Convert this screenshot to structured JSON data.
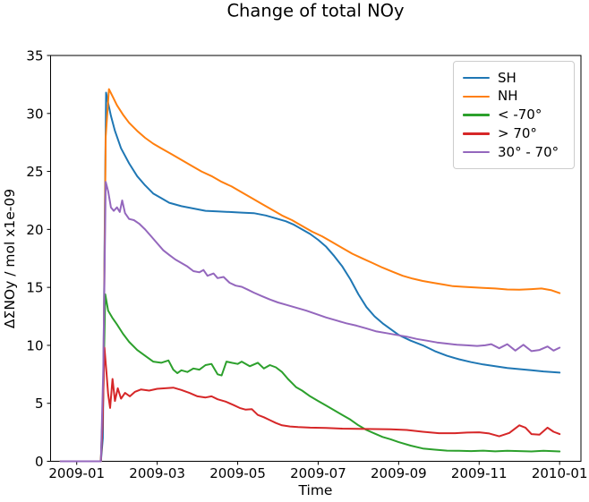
{
  "chart_data": {
    "type": "line",
    "title": "Change of total NOy",
    "xlabel": "Time",
    "ylabel": "ΔΣNOy / mol x1e-09",
    "x_unit": "months since 2009-01-01",
    "xlim": [
      -0.65,
      12.53
    ],
    "ylim": [
      0,
      35
    ],
    "grid": false,
    "legend_position": "upper right",
    "x_ticks": [
      {
        "v": 0,
        "label": "2009-01"
      },
      {
        "v": 2,
        "label": "2009-03"
      },
      {
        "v": 4,
        "label": "2009-05"
      },
      {
        "v": 6,
        "label": "2009-07"
      },
      {
        "v": 8,
        "label": "2009-09"
      },
      {
        "v": 10,
        "label": "2009-11"
      },
      {
        "v": 12,
        "label": "2010-01"
      }
    ],
    "y_ticks": [
      0,
      5,
      10,
      15,
      20,
      25,
      30,
      35
    ],
    "series": [
      {
        "id": "sh",
        "name": "SH",
        "color": "#1f77b4",
        "points": [
          [
            -0.4,
            0
          ],
          [
            0.6,
            0
          ],
          [
            0.65,
            2
          ],
          [
            0.7,
            22
          ],
          [
            0.73,
            31.8
          ],
          [
            0.78,
            30.9
          ],
          [
            0.85,
            29.8
          ],
          [
            0.95,
            28.5
          ],
          [
            1.1,
            27.0
          ],
          [
            1.3,
            25.7
          ],
          [
            1.5,
            24.6
          ],
          [
            1.7,
            23.8
          ],
          [
            1.9,
            23.1
          ],
          [
            2.1,
            22.7
          ],
          [
            2.3,
            22.3
          ],
          [
            2.6,
            22.0
          ],
          [
            2.9,
            21.8
          ],
          [
            3.2,
            21.6
          ],
          [
            3.5,
            21.55
          ],
          [
            3.8,
            21.5
          ],
          [
            4.1,
            21.45
          ],
          [
            4.4,
            21.4
          ],
          [
            4.7,
            21.2
          ],
          [
            5.0,
            20.9
          ],
          [
            5.2,
            20.7
          ],
          [
            5.4,
            20.4
          ],
          [
            5.6,
            20.0
          ],
          [
            5.8,
            19.6
          ],
          [
            6.0,
            19.1
          ],
          [
            6.2,
            18.5
          ],
          [
            6.4,
            17.7
          ],
          [
            6.6,
            16.8
          ],
          [
            6.8,
            15.7
          ],
          [
            7.0,
            14.4
          ],
          [
            7.2,
            13.3
          ],
          [
            7.4,
            12.5
          ],
          [
            7.6,
            11.9
          ],
          [
            7.8,
            11.4
          ],
          [
            8.0,
            10.9
          ],
          [
            8.3,
            10.4
          ],
          [
            8.6,
            10.0
          ],
          [
            8.9,
            9.5
          ],
          [
            9.2,
            9.1
          ],
          [
            9.5,
            8.8
          ],
          [
            9.8,
            8.55
          ],
          [
            10.1,
            8.35
          ],
          [
            10.4,
            8.2
          ],
          [
            10.7,
            8.05
          ],
          [
            11.0,
            7.95
          ],
          [
            11.3,
            7.85
          ],
          [
            11.6,
            7.75
          ],
          [
            12.0,
            7.65
          ]
        ]
      },
      {
        "id": "nh",
        "name": "NH",
        "color": "#ff7f0e",
        "points": [
          [
            -0.4,
            0
          ],
          [
            0.6,
            0
          ],
          [
            0.66,
            6
          ],
          [
            0.72,
            28
          ],
          [
            0.8,
            32.1
          ],
          [
            0.9,
            31.4
          ],
          [
            1.0,
            30.7
          ],
          [
            1.15,
            29.9
          ],
          [
            1.3,
            29.2
          ],
          [
            1.5,
            28.5
          ],
          [
            1.7,
            27.9
          ],
          [
            1.9,
            27.4
          ],
          [
            2.1,
            27.0
          ],
          [
            2.35,
            26.5
          ],
          [
            2.6,
            26.0
          ],
          [
            2.85,
            25.5
          ],
          [
            3.1,
            25.0
          ],
          [
            3.35,
            24.6
          ],
          [
            3.6,
            24.1
          ],
          [
            3.85,
            23.7
          ],
          [
            4.1,
            23.2
          ],
          [
            4.35,
            22.7
          ],
          [
            4.6,
            22.2
          ],
          [
            4.85,
            21.7
          ],
          [
            5.1,
            21.2
          ],
          [
            5.35,
            20.8
          ],
          [
            5.6,
            20.3
          ],
          [
            5.85,
            19.8
          ],
          [
            6.1,
            19.4
          ],
          [
            6.35,
            18.9
          ],
          [
            6.6,
            18.4
          ],
          [
            6.85,
            17.9
          ],
          [
            7.1,
            17.5
          ],
          [
            7.35,
            17.1
          ],
          [
            7.6,
            16.7
          ],
          [
            7.85,
            16.35
          ],
          [
            8.1,
            16.0
          ],
          [
            8.35,
            15.75
          ],
          [
            8.6,
            15.55
          ],
          [
            8.85,
            15.4
          ],
          [
            9.1,
            15.25
          ],
          [
            9.35,
            15.1
          ],
          [
            9.6,
            15.05
          ],
          [
            9.85,
            15.0
          ],
          [
            10.1,
            14.95
          ],
          [
            10.4,
            14.9
          ],
          [
            10.7,
            14.82
          ],
          [
            11.0,
            14.8
          ],
          [
            11.3,
            14.85
          ],
          [
            11.55,
            14.9
          ],
          [
            11.8,
            14.75
          ],
          [
            12.0,
            14.5
          ]
        ]
      },
      {
        "id": "lt-minus-70",
        "name": "< -70°",
        "color": "#2ca02c",
        "points": [
          [
            -0.4,
            0
          ],
          [
            0.6,
            0
          ],
          [
            0.66,
            6
          ],
          [
            0.71,
            14.4
          ],
          [
            0.78,
            13.0
          ],
          [
            0.88,
            12.4
          ],
          [
            1.0,
            11.8
          ],
          [
            1.15,
            11.0
          ],
          [
            1.3,
            10.3
          ],
          [
            1.5,
            9.6
          ],
          [
            1.7,
            9.1
          ],
          [
            1.9,
            8.6
          ],
          [
            2.1,
            8.5
          ],
          [
            2.28,
            8.7
          ],
          [
            2.4,
            7.9
          ],
          [
            2.5,
            7.6
          ],
          [
            2.6,
            7.85
          ],
          [
            2.75,
            7.7
          ],
          [
            2.9,
            8.0
          ],
          [
            3.05,
            7.9
          ],
          [
            3.2,
            8.3
          ],
          [
            3.35,
            8.4
          ],
          [
            3.5,
            7.5
          ],
          [
            3.6,
            7.4
          ],
          [
            3.72,
            8.6
          ],
          [
            3.85,
            8.5
          ],
          [
            4.0,
            8.4
          ],
          [
            4.1,
            8.6
          ],
          [
            4.3,
            8.2
          ],
          [
            4.5,
            8.5
          ],
          [
            4.65,
            8.0
          ],
          [
            4.8,
            8.3
          ],
          [
            4.95,
            8.1
          ],
          [
            5.1,
            7.7
          ],
          [
            5.25,
            7.1
          ],
          [
            5.45,
            6.4
          ],
          [
            5.6,
            6.1
          ],
          [
            5.8,
            5.6
          ],
          [
            6.0,
            5.2
          ],
          [
            6.2,
            4.8
          ],
          [
            6.4,
            4.4
          ],
          [
            6.6,
            4.0
          ],
          [
            6.8,
            3.6
          ],
          [
            7.0,
            3.1
          ],
          [
            7.2,
            2.7
          ],
          [
            7.4,
            2.4
          ],
          [
            7.6,
            2.1
          ],
          [
            7.8,
            1.9
          ],
          [
            8.0,
            1.65
          ],
          [
            8.3,
            1.35
          ],
          [
            8.6,
            1.1
          ],
          [
            8.9,
            1.0
          ],
          [
            9.2,
            0.92
          ],
          [
            9.5,
            0.9
          ],
          [
            9.8,
            0.88
          ],
          [
            10.1,
            0.92
          ],
          [
            10.4,
            0.86
          ],
          [
            10.7,
            0.9
          ],
          [
            11.0,
            0.88
          ],
          [
            11.3,
            0.85
          ],
          [
            11.6,
            0.9
          ],
          [
            12.0,
            0.85
          ]
        ]
      },
      {
        "id": "gt-70",
        "name": "> 70°",
        "color": "#d62728",
        "points": [
          [
            -0.4,
            0
          ],
          [
            0.6,
            0
          ],
          [
            0.64,
            3
          ],
          [
            0.69,
            9.8
          ],
          [
            0.74,
            7.6
          ],
          [
            0.78,
            5.8
          ],
          [
            0.83,
            4.6
          ],
          [
            0.89,
            7.1
          ],
          [
            0.95,
            5.2
          ],
          [
            1.02,
            6.3
          ],
          [
            1.1,
            5.4
          ],
          [
            1.2,
            5.9
          ],
          [
            1.32,
            5.6
          ],
          [
            1.45,
            6.0
          ],
          [
            1.6,
            6.2
          ],
          [
            1.8,
            6.1
          ],
          [
            2.0,
            6.25
          ],
          [
            2.2,
            6.3
          ],
          [
            2.4,
            6.35
          ],
          [
            2.6,
            6.15
          ],
          [
            2.8,
            5.9
          ],
          [
            3.0,
            5.6
          ],
          [
            3.2,
            5.5
          ],
          [
            3.35,
            5.6
          ],
          [
            3.5,
            5.35
          ],
          [
            3.7,
            5.15
          ],
          [
            3.9,
            4.85
          ],
          [
            4.05,
            4.6
          ],
          [
            4.2,
            4.45
          ],
          [
            4.35,
            4.5
          ],
          [
            4.5,
            4.0
          ],
          [
            4.65,
            3.8
          ],
          [
            4.8,
            3.55
          ],
          [
            4.95,
            3.3
          ],
          [
            5.1,
            3.1
          ],
          [
            5.3,
            3.0
          ],
          [
            5.5,
            2.95
          ],
          [
            5.8,
            2.9
          ],
          [
            6.2,
            2.88
          ],
          [
            6.6,
            2.82
          ],
          [
            7.0,
            2.8
          ],
          [
            7.4,
            2.78
          ],
          [
            7.8,
            2.76
          ],
          [
            8.2,
            2.7
          ],
          [
            8.6,
            2.55
          ],
          [
            9.0,
            2.42
          ],
          [
            9.4,
            2.42
          ],
          [
            9.7,
            2.48
          ],
          [
            10.0,
            2.5
          ],
          [
            10.25,
            2.4
          ],
          [
            10.5,
            2.15
          ],
          [
            10.75,
            2.45
          ],
          [
            11.0,
            3.1
          ],
          [
            11.15,
            2.9
          ],
          [
            11.3,
            2.35
          ],
          [
            11.5,
            2.3
          ],
          [
            11.7,
            2.9
          ],
          [
            11.85,
            2.55
          ],
          [
            12.0,
            2.35
          ]
        ]
      },
      {
        "id": "30-70",
        "name": "30° - 70°",
        "color": "#9467bd",
        "points": [
          [
            -0.4,
            0
          ],
          [
            0.6,
            0
          ],
          [
            0.66,
            8
          ],
          [
            0.72,
            24.1
          ],
          [
            0.78,
            23.3
          ],
          [
            0.85,
            21.9
          ],
          [
            0.92,
            21.6
          ],
          [
            1.0,
            21.9
          ],
          [
            1.07,
            21.5
          ],
          [
            1.13,
            22.5
          ],
          [
            1.2,
            21.4
          ],
          [
            1.3,
            20.9
          ],
          [
            1.42,
            20.8
          ],
          [
            1.55,
            20.5
          ],
          [
            1.7,
            20.0
          ],
          [
            1.85,
            19.4
          ],
          [
            2.0,
            18.8
          ],
          [
            2.15,
            18.2
          ],
          [
            2.3,
            17.8
          ],
          [
            2.45,
            17.4
          ],
          [
            2.6,
            17.1
          ],
          [
            2.75,
            16.8
          ],
          [
            2.9,
            16.4
          ],
          [
            3.05,
            16.3
          ],
          [
            3.15,
            16.5
          ],
          [
            3.25,
            16.0
          ],
          [
            3.4,
            16.2
          ],
          [
            3.5,
            15.8
          ],
          [
            3.65,
            15.9
          ],
          [
            3.8,
            15.4
          ],
          [
            3.95,
            15.15
          ],
          [
            4.1,
            15.05
          ],
          [
            4.25,
            14.8
          ],
          [
            4.4,
            14.55
          ],
          [
            4.6,
            14.25
          ],
          [
            4.8,
            13.95
          ],
          [
            5.0,
            13.7
          ],
          [
            5.2,
            13.5
          ],
          [
            5.45,
            13.25
          ],
          [
            5.7,
            13.0
          ],
          [
            5.95,
            12.7
          ],
          [
            6.2,
            12.4
          ],
          [
            6.45,
            12.15
          ],
          [
            6.7,
            11.9
          ],
          [
            6.95,
            11.7
          ],
          [
            7.2,
            11.45
          ],
          [
            7.45,
            11.2
          ],
          [
            7.7,
            11.05
          ],
          [
            7.95,
            10.9
          ],
          [
            8.2,
            10.75
          ],
          [
            8.45,
            10.55
          ],
          [
            8.7,
            10.4
          ],
          [
            8.95,
            10.25
          ],
          [
            9.2,
            10.15
          ],
          [
            9.45,
            10.05
          ],
          [
            9.7,
            10.0
          ],
          [
            9.95,
            9.95
          ],
          [
            10.15,
            10.0
          ],
          [
            10.3,
            10.1
          ],
          [
            10.5,
            9.75
          ],
          [
            10.7,
            10.1
          ],
          [
            10.9,
            9.55
          ],
          [
            11.1,
            10.05
          ],
          [
            11.3,
            9.5
          ],
          [
            11.5,
            9.6
          ],
          [
            11.7,
            9.9
          ],
          [
            11.85,
            9.55
          ],
          [
            12.0,
            9.8
          ]
        ]
      }
    ]
  }
}
